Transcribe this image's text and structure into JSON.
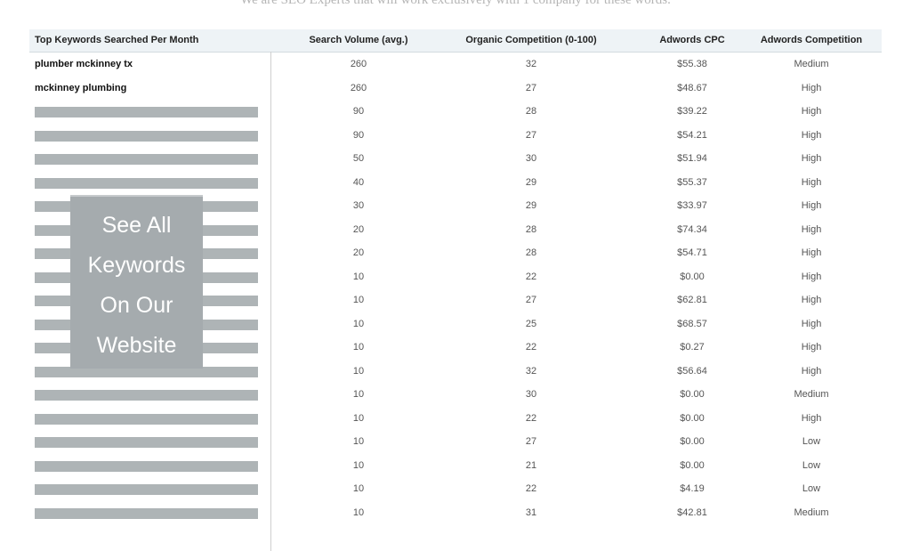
{
  "caption": "We are SEO Experts that will work exclusively with 1 company for these words.",
  "table": {
    "headers": {
      "keyword": "Top Keywords Searched Per Month",
      "volume": "Search Volume (avg.)",
      "organic": "Organic Competition (0-100)",
      "cpc": "Adwords CPC",
      "competition": "Adwords Competition"
    },
    "rows": [
      {
        "keyword": "plumber mckinney tx",
        "volume": "260",
        "organic": "32",
        "cpc": "$55.38",
        "competition": "Medium"
      },
      {
        "keyword": "mckinney plumbing",
        "volume": "260",
        "organic": "27",
        "cpc": "$48.67",
        "competition": "High"
      },
      {
        "keyword": "",
        "volume": "90",
        "organic": "28",
        "cpc": "$39.22",
        "competition": "High"
      },
      {
        "keyword": "",
        "volume": "90",
        "organic": "27",
        "cpc": "$54.21",
        "competition": "High"
      },
      {
        "keyword": "",
        "volume": "50",
        "organic": "30",
        "cpc": "$51.94",
        "competition": "High"
      },
      {
        "keyword": "",
        "volume": "40",
        "organic": "29",
        "cpc": "$55.37",
        "competition": "High"
      },
      {
        "keyword": "",
        "volume": "30",
        "organic": "29",
        "cpc": "$33.97",
        "competition": "High"
      },
      {
        "keyword": "",
        "volume": "20",
        "organic": "28",
        "cpc": "$74.34",
        "competition": "High"
      },
      {
        "keyword": "",
        "volume": "20",
        "organic": "28",
        "cpc": "$54.71",
        "competition": "High"
      },
      {
        "keyword": "",
        "volume": "10",
        "organic": "22",
        "cpc": "$0.00",
        "competition": "High"
      },
      {
        "keyword": "",
        "volume": "10",
        "organic": "27",
        "cpc": "$62.81",
        "competition": "High"
      },
      {
        "keyword": "",
        "volume": "10",
        "organic": "25",
        "cpc": "$68.57",
        "competition": "High"
      },
      {
        "keyword": "",
        "volume": "10",
        "organic": "22",
        "cpc": "$0.27",
        "competition": "High"
      },
      {
        "keyword": "",
        "volume": "10",
        "organic": "32",
        "cpc": "$56.64",
        "competition": "High"
      },
      {
        "keyword": "",
        "volume": "10",
        "organic": "30",
        "cpc": "$0.00",
        "competition": "Medium"
      },
      {
        "keyword": "",
        "volume": "10",
        "organic": "22",
        "cpc": "$0.00",
        "competition": "High"
      },
      {
        "keyword": "",
        "volume": "10",
        "organic": "27",
        "cpc": "$0.00",
        "competition": "Low"
      },
      {
        "keyword": "",
        "volume": "10",
        "organic": "21",
        "cpc": "$0.00",
        "competition": "Low"
      },
      {
        "keyword": "",
        "volume": "10",
        "organic": "22",
        "cpc": "$4.19",
        "competition": "Low"
      },
      {
        "keyword": "",
        "volume": "10",
        "organic": "31",
        "cpc": "$42.81",
        "competition": "Medium"
      }
    ]
  },
  "overlay": {
    "lines": [
      "See All",
      "Keywords",
      "On Our",
      "Website"
    ]
  },
  "colors": {
    "header_bg": "#eef3f6",
    "redaction_bar": "#aeb4b6",
    "overlay_bg": "#a5abae"
  }
}
